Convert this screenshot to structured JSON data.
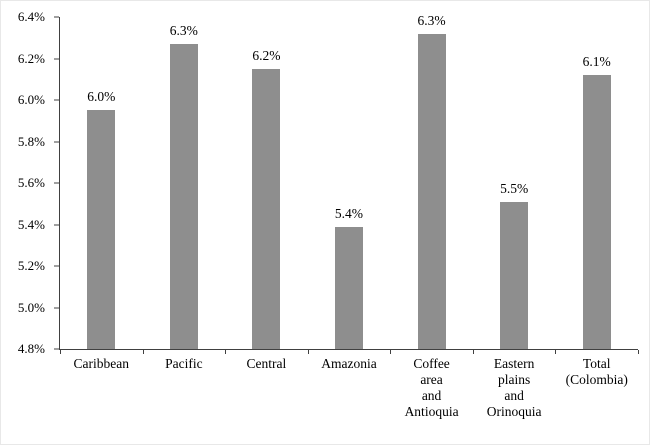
{
  "chart_data": {
    "type": "bar",
    "title": "",
    "xlabel": "",
    "ylabel": "",
    "categories": [
      "Caribbean",
      "Pacific",
      "Central",
      "Amazonia",
      "Coffee area and Antioquia",
      "Eastern plains and Orinoquia",
      "Total (Colombia)"
    ],
    "category_label_lines": [
      [
        "Caribbean"
      ],
      [
        "Pacific"
      ],
      [
        "Central"
      ],
      [
        "Amazonia"
      ],
      [
        "Coffee",
        "area",
        "and",
        "Antioquia"
      ],
      [
        "Eastern",
        "plains",
        "and",
        "Orinoquia"
      ],
      [
        "Total",
        "(Colombia)"
      ]
    ],
    "values": [
      5.95,
      6.27,
      6.15,
      5.39,
      6.32,
      5.51,
      6.12
    ],
    "data_labels": [
      "6.0%",
      "6.3%",
      "6.2%",
      "5.4%",
      "6.3%",
      "5.5%",
      "6.1%"
    ],
    "ylim": [
      4.8,
      6.4
    ],
    "yticks": [
      "4.8%",
      "5.0%",
      "5.2%",
      "5.4%",
      "5.6%",
      "5.8%",
      "6.0%",
      "6.2%",
      "6.4%"
    ],
    "ytick_values": [
      4.8,
      5.0,
      5.2,
      5.4,
      5.6,
      5.8,
      6.0,
      6.2,
      6.4
    ],
    "bar_color": "#8e8e8e",
    "axis_color": "#404040",
    "grid": false,
    "legend": null
  }
}
